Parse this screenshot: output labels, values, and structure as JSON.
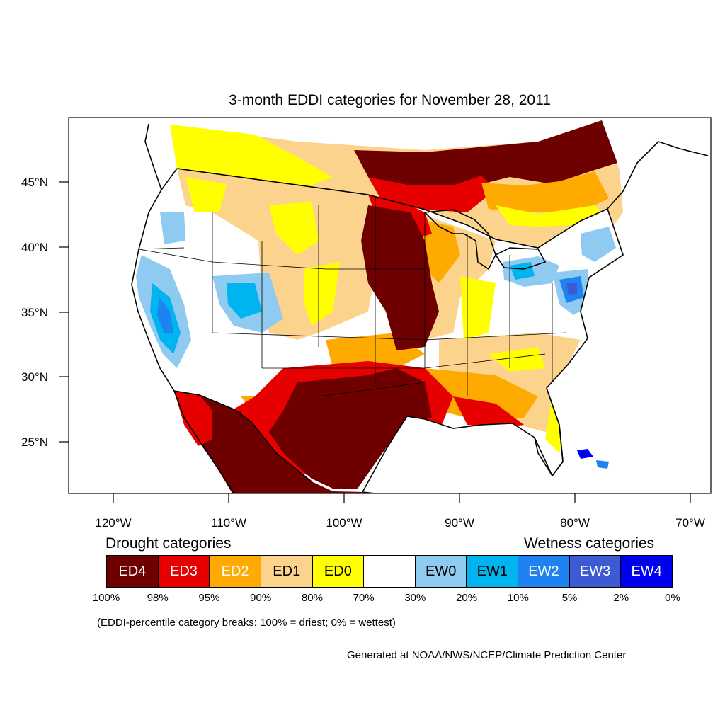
{
  "title": "3-month EDDI categories for November 28, 2011",
  "axes": {
    "lat_labels": [
      "45°N",
      "40°N",
      "35°N",
      "30°N",
      "25°N"
    ],
    "lon_labels": [
      "120°W",
      "110°W",
      "100°W",
      "90°W",
      "80°W",
      "70°W"
    ]
  },
  "legend": {
    "drought_heading": "Drought categories",
    "wetness_heading": "Wetness categories",
    "categories": [
      {
        "label": "ED4",
        "color": "#6e0000",
        "text_color": "#ffffff"
      },
      {
        "label": "ED3",
        "color": "#e60000",
        "text_color": "#ffffff"
      },
      {
        "label": "ED2",
        "color": "#ffaa00",
        "text_color": "#ffffff"
      },
      {
        "label": "ED1",
        "color": "#fcd38d",
        "text_color": "#000000"
      },
      {
        "label": "ED0",
        "color": "#ffff00",
        "text_color": "#000000"
      },
      {
        "label": "",
        "color": "#ffffff",
        "text_color": "#000000"
      },
      {
        "label": "EW0",
        "color": "#8fcbf0",
        "text_color": "#000000"
      },
      {
        "label": "EW1",
        "color": "#00b4f0",
        "text_color": "#000000"
      },
      {
        "label": "EW2",
        "color": "#1e82f0",
        "text_color": "#ffffff"
      },
      {
        "label": "EW3",
        "color": "#3c5ad2",
        "text_color": "#ffffff"
      },
      {
        "label": "EW4",
        "color": "#0000f0",
        "text_color": "#ffffff"
      }
    ],
    "breaks": [
      "100%",
      "98%",
      "95%",
      "90%",
      "80%",
      "70%",
      "30%",
      "20%",
      "10%",
      "5%",
      "2%",
      "0%"
    ]
  },
  "note": "(EDDI-percentile category breaks: 100% = driest; 0% = wettest)",
  "credit": "Generated at NOAA/NWS/NCEP/Climate Prediction Center"
}
